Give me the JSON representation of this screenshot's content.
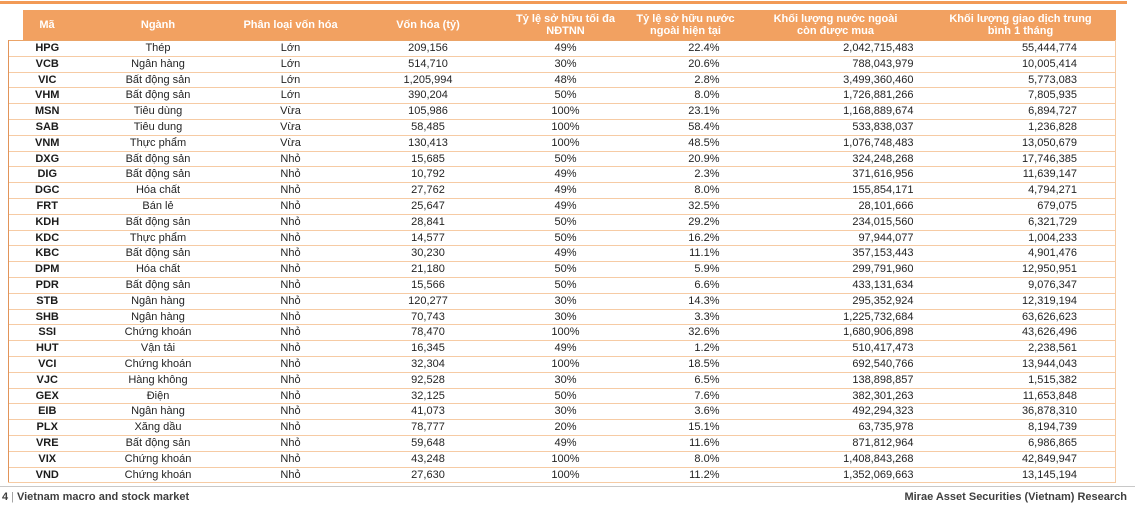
{
  "table": {
    "columns": [
      {
        "label": "Mã"
      },
      {
        "label": "Ngành"
      },
      {
        "label": "Phân loại vốn hóa"
      },
      {
        "label": "Vốn hóa (tỷ)"
      },
      {
        "label": "Tỷ lệ sở hữu tối đa\nNĐTNN"
      },
      {
        "label": "Tỷ lệ sở hữu nước\nngoài hiện tại"
      },
      {
        "label": "Khối lượng nước ngoài\ncòn được mua"
      },
      {
        "label": "Khối lượng giao dịch trung\nbình 1 tháng"
      }
    ],
    "rows": [
      [
        "HPG",
        "Thép",
        "Lớn",
        "209,156",
        "49%",
        "22.4%",
        "2,042,715,483",
        "55,444,774"
      ],
      [
        "VCB",
        "Ngân hàng",
        "Lớn",
        "514,710",
        "30%",
        "20.6%",
        "788,043,979",
        "10,005,414"
      ],
      [
        "VIC",
        "Bất động sản",
        "Lớn",
        "1,205,994",
        "48%",
        "2.8%",
        "3,499,360,460",
        "5,773,083"
      ],
      [
        "VHM",
        "Bất động sản",
        "Lớn",
        "390,204",
        "50%",
        "8.0%",
        "1,726,881,266",
        "7,805,935"
      ],
      [
        "MSN",
        "Tiêu dùng",
        "Vừa",
        "105,986",
        "100%",
        "23.1%",
        "1,168,889,674",
        "6,894,727"
      ],
      [
        "SAB",
        "Tiêu dung",
        "Vừa",
        "58,485",
        "100%",
        "58.4%",
        "533,838,037",
        "1,236,828"
      ],
      [
        "VNM",
        "Thực phẩm",
        "Vừa",
        "130,413",
        "100%",
        "48.5%",
        "1,076,748,483",
        "13,050,679"
      ],
      [
        "DXG",
        "Bất động sản",
        "Nhỏ",
        "15,685",
        "50%",
        "20.9%",
        "324,248,268",
        "17,746,385"
      ],
      [
        "DIG",
        "Bất động sản",
        "Nhỏ",
        "10,792",
        "49%",
        "2.3%",
        "371,616,956",
        "11,639,147"
      ],
      [
        "DGC",
        "Hóa chất",
        "Nhỏ",
        "27,762",
        "49%",
        "8.0%",
        "155,854,171",
        "4,794,271"
      ],
      [
        "FRT",
        "Bán lẻ",
        "Nhỏ",
        "25,647",
        "49%",
        "32.5%",
        "28,101,666",
        "679,075"
      ],
      [
        "KDH",
        "Bất động sản",
        "Nhỏ",
        "28,841",
        "50%",
        "29.2%",
        "234,015,560",
        "6,321,729"
      ],
      [
        "KDC",
        "Thực phẩm",
        "Nhỏ",
        "14,577",
        "50%",
        "16.2%",
        "97,944,077",
        "1,004,233"
      ],
      [
        "KBC",
        "Bất động sản",
        "Nhỏ",
        "30,230",
        "49%",
        "11.1%",
        "357,153,443",
        "4,901,476"
      ],
      [
        "DPM",
        "Hóa chất",
        "Nhỏ",
        "21,180",
        "50%",
        "5.9%",
        "299,791,960",
        "12,950,951"
      ],
      [
        "PDR",
        "Bất động sản",
        "Nhỏ",
        "15,566",
        "50%",
        "6.6%",
        "433,131,634",
        "9,076,347"
      ],
      [
        "STB",
        "Ngân hàng",
        "Nhỏ",
        "120,277",
        "30%",
        "14.3%",
        "295,352,924",
        "12,319,194"
      ],
      [
        "SHB",
        "Ngân hàng",
        "Nhỏ",
        "70,743",
        "30%",
        "3.3%",
        "1,225,732,684",
        "63,626,623"
      ],
      [
        "SSI",
        "Chứng khoán",
        "Nhỏ",
        "78,470",
        "100%",
        "32.6%",
        "1,680,906,898",
        "43,626,496"
      ],
      [
        "HUT",
        "Vận tải",
        "Nhỏ",
        "16,345",
        "49%",
        "1.2%",
        "510,417,473",
        "2,238,561"
      ],
      [
        "VCI",
        "Chứng khoán",
        "Nhỏ",
        "32,304",
        "100%",
        "18.5%",
        "692,540,766",
        "13,944,043"
      ],
      [
        "VJC",
        "Hàng không",
        "Nhỏ",
        "92,528",
        "30%",
        "6.5%",
        "138,898,857",
        "1,515,382"
      ],
      [
        "GEX",
        "Điện",
        "Nhỏ",
        "32,125",
        "50%",
        "7.6%",
        "382,301,263",
        "11,653,848"
      ],
      [
        "EIB",
        "Ngân hàng",
        "Nhỏ",
        "41,073",
        "30%",
        "3.6%",
        "492,294,323",
        "36,878,310"
      ],
      [
        "PLX",
        "Xăng dầu",
        "Nhỏ",
        "78,777",
        "20%",
        "15.1%",
        "63,735,978",
        "8,194,739"
      ],
      [
        "VRE",
        "Bất động sản",
        "Nhỏ",
        "59,648",
        "49%",
        "11.6%",
        "871,812,964",
        "6,986,865"
      ],
      [
        "VIX",
        "Chứng khoán",
        "Nhỏ",
        "43,248",
        "100%",
        "8.0%",
        "1,408,843,268",
        "42,849,947"
      ],
      [
        "VND",
        "Chứng khoán",
        "Nhỏ",
        "27,630",
        "100%",
        "11.2%",
        "1,352,069,663",
        "13,145,194"
      ]
    ]
  },
  "footer": {
    "page_number": "4",
    "separator": "|",
    "left_text": "Vietnam macro and stock market",
    "right_text": "Mirae Asset Securities (Vietnam) Research"
  },
  "colors": {
    "header_bg": "#F2A161",
    "row_border": "#F6CBA4",
    "outer_border": "#E29459",
    "top_rule": "#F29A56",
    "body_text": "#242424",
    "footer_text": "#3F3F3F"
  }
}
